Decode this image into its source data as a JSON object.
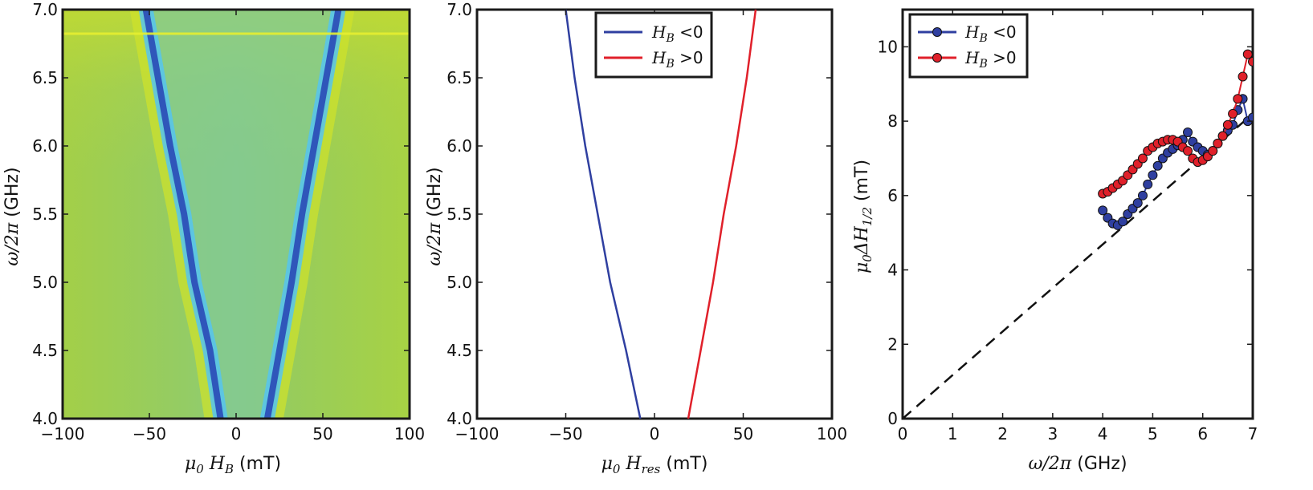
{
  "colors": {
    "blue": "#2f3fa0",
    "red": "#e0202a",
    "dash": "#111111",
    "cm_low": "#1a2fa8",
    "cm_mid": "#4fc6ee",
    "cm_bg": "#a8d24a"
  },
  "chart_data": [
    {
      "type": "heatmap",
      "xlabel": "μ0 HB  (mT)",
      "ylabel": "ω/2π (GHz)",
      "xlim": [
        -100,
        100
      ],
      "ylim": [
        4.0,
        7.0
      ],
      "xticks": [
        "−100",
        "−50",
        "0",
        "50",
        "100"
      ],
      "yticks": [
        "4.0",
        "4.5",
        "5.0",
        "5.5",
        "6.0",
        "6.5",
        "7.0"
      ],
      "branches": [
        {
          "name": "HB<0",
          "points": [
            [
              -9,
              4.0
            ],
            [
              -15,
              4.5
            ],
            [
              -24,
              5.0
            ],
            [
              -30,
              5.5
            ],
            [
              -38,
              6.0
            ],
            [
              -45,
              6.5
            ],
            [
              -52,
              7.0
            ]
          ]
        },
        {
          "name": "HB>0",
          "points": [
            [
              18,
              4.0
            ],
            [
              25,
              4.5
            ],
            [
              32,
              5.0
            ],
            [
              38,
              5.5
            ],
            [
              45,
              6.0
            ],
            [
              52,
              6.5
            ],
            [
              59,
              7.0
            ]
          ]
        }
      ]
    },
    {
      "type": "line",
      "xlabel": "μ0 Hres (mT)",
      "ylabel": "ω/2π (GHz)",
      "xlim": [
        -100,
        100
      ],
      "ylim": [
        4.0,
        7.0
      ],
      "xticks": [
        "−100",
        "−50",
        "0",
        "50",
        "100"
      ],
      "yticks": [
        "4.0",
        "4.5",
        "5.0",
        "5.5",
        "6.0",
        "6.5",
        "7.0"
      ],
      "legend": {
        "placement": "top-right",
        "entries": [
          "HB <0",
          "HB >0"
        ]
      },
      "series": [
        {
          "name": "HB <0",
          "color": "blue",
          "x": [
            -8,
            -16,
            -25,
            -32,
            -39,
            -45,
            -50
          ],
          "y": [
            4.0,
            4.5,
            5.0,
            5.5,
            6.0,
            6.5,
            7.0
          ]
        },
        {
          "name": "HB >0",
          "color": "red",
          "x": [
            19,
            26,
            33,
            39,
            46,
            52,
            57
          ],
          "y": [
            4.0,
            4.5,
            5.0,
            5.5,
            6.0,
            6.5,
            7.0
          ]
        }
      ]
    },
    {
      "type": "scatter",
      "xlabel": "ω/2π (GHz)",
      "ylabel": "μ0 ΔH1/2 (mT)",
      "xlim": [
        0,
        7
      ],
      "ylim": [
        0,
        11
      ],
      "xticks": [
        "0",
        "1",
        "2",
        "3",
        "4",
        "5",
        "6",
        "7"
      ],
      "yticks": [
        "0",
        "2",
        "4",
        "6",
        "8",
        "10"
      ],
      "legend": {
        "placement": "top-left",
        "entries": [
          "HB <0",
          "HB >0"
        ]
      },
      "reference_line": {
        "style": "dashed",
        "x": [
          0,
          7
        ],
        "y": [
          0,
          8.2
        ]
      },
      "series": [
        {
          "name": "HB <0",
          "color": "blue",
          "x": [
            4.0,
            4.1,
            4.2,
            4.3,
            4.4,
            4.5,
            4.6,
            4.7,
            4.8,
            4.9,
            5.0,
            5.1,
            5.2,
            5.3,
            5.4,
            5.5,
            5.6,
            5.7,
            5.8,
            5.9,
            6.0,
            6.1,
            6.2,
            6.3,
            6.4,
            6.5,
            6.6,
            6.7,
            6.8,
            6.9,
            7.0
          ],
          "y": [
            5.6,
            5.4,
            5.25,
            5.2,
            5.3,
            5.5,
            5.65,
            5.8,
            6.0,
            6.3,
            6.55,
            6.8,
            7.0,
            7.15,
            7.25,
            7.35,
            7.5,
            7.7,
            7.45,
            7.3,
            7.2,
            7.1,
            7.2,
            7.4,
            7.6,
            7.75,
            7.9,
            8.3,
            8.6,
            8.0,
            8.1
          ]
        },
        {
          "name": "HB >0",
          "color": "red",
          "x": [
            4.0,
            4.1,
            4.2,
            4.3,
            4.4,
            4.5,
            4.6,
            4.7,
            4.8,
            4.9,
            5.0,
            5.1,
            5.2,
            5.3,
            5.4,
            5.5,
            5.6,
            5.7,
            5.8,
            5.9,
            6.0,
            6.1,
            6.2,
            6.3,
            6.4,
            6.5,
            6.6,
            6.7,
            6.8,
            6.9,
            7.0
          ],
          "y": [
            6.05,
            6.1,
            6.2,
            6.3,
            6.4,
            6.55,
            6.7,
            6.85,
            7.0,
            7.2,
            7.3,
            7.4,
            7.45,
            7.5,
            7.5,
            7.45,
            7.3,
            7.2,
            7.0,
            6.9,
            6.95,
            7.05,
            7.2,
            7.4,
            7.6,
            7.9,
            8.2,
            8.6,
            9.2,
            9.8,
            9.6
          ]
        }
      ]
    }
  ]
}
